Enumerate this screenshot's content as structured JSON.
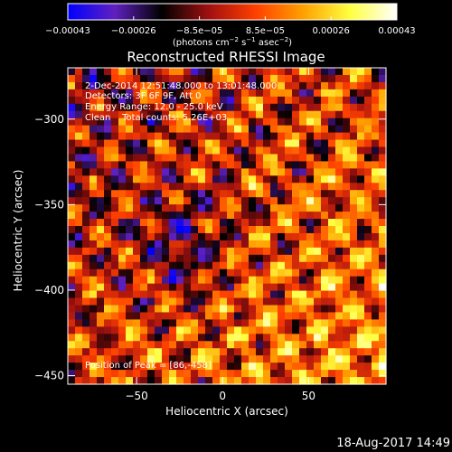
{
  "chart_data": {
    "type": "heatmap",
    "title": "Reconstructed RHESSI Image",
    "xlabel": "Heliocentric X (arcsec)",
    "ylabel": "Heliocentric Y (arcsec)",
    "xlim": [
      -90,
      95
    ],
    "ylim": [
      -455,
      -270
    ],
    "x_ticks": [
      -50,
      0,
      50
    ],
    "y_ticks": [
      -300,
      -350,
      -400,
      -450
    ],
    "colorbar": {
      "min": -0.00043,
      "max": 0.00043,
      "ticks": [
        "-0.00043",
        "-0.00026",
        "-8.5e-05",
        "8.5e-05",
        "0.00026",
        "0.00043"
      ],
      "unit_label": "(photons cm^-2 s^-1 asec^-2)",
      "colors": [
        "#0000ff",
        "#6020c0",
        "#000000",
        "#a01010",
        "#ff4000",
        "#ffa000",
        "#ffff40",
        "#ffffff"
      ]
    },
    "annotations": [
      "2-Dec-2014 12:51:48.000 to 13:01:48.000",
      "Detectors: 3F 6F 9F, Att 0",
      "Energy Range: 12.0 - 25.0 keV",
      "Clean    Total counts: 5.26E+03"
    ],
    "peak_label": "Position of Peak = [86,-458]",
    "peak_position": [
      86,
      -458
    ]
  },
  "timestamp": "18-Aug-2017 14:49"
}
